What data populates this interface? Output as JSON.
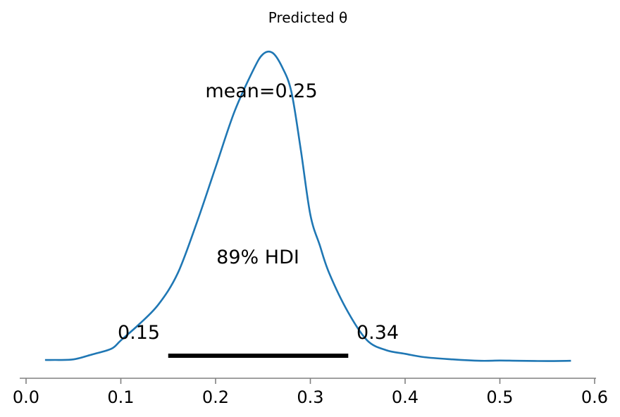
{
  "chart_data": {
    "type": "line",
    "title": "Predicted θ",
    "xlabel": "",
    "ylabel": "",
    "xlim": [
      0.0,
      0.6
    ],
    "ylim": [
      0,
      11.2
    ],
    "grid": false,
    "line_color": "#1f77b4",
    "hdi_color": "#000000",
    "x_ticks": [
      "0.0",
      "0.1",
      "0.2",
      "0.3",
      "0.4",
      "0.5",
      "0.6"
    ],
    "mean_label": "mean=0.25",
    "hdi_label": "89% HDI",
    "hdi": {
      "low": 0.15,
      "high": 0.34,
      "low_label": "0.15",
      "high_label": "0.34"
    },
    "series": [
      {
        "x": [
          0.02,
          0.03,
          0.05,
          0.07,
          0.09,
          0.1,
          0.12,
          0.14,
          0.16,
          0.18,
          0.2,
          0.22,
          0.24,
          0.25,
          0.26,
          0.27,
          0.28,
          0.29,
          0.3,
          0.31,
          0.32,
          0.34,
          0.36,
          0.38,
          0.4,
          0.42,
          0.45,
          0.48,
          0.5,
          0.52,
          0.55,
          0.575
        ],
        "y": [
          0.0,
          0.0,
          0.02,
          0.2,
          0.4,
          0.7,
          1.3,
          2.0,
          3.1,
          4.9,
          6.9,
          8.9,
          10.4,
          10.95,
          11.0,
          10.5,
          9.6,
          7.5,
          5.2,
          4.1,
          3.1,
          1.7,
          0.7,
          0.35,
          0.22,
          0.1,
          0.02,
          -0.03,
          -0.02,
          -0.03,
          -0.04,
          -0.03
        ]
      }
    ]
  }
}
